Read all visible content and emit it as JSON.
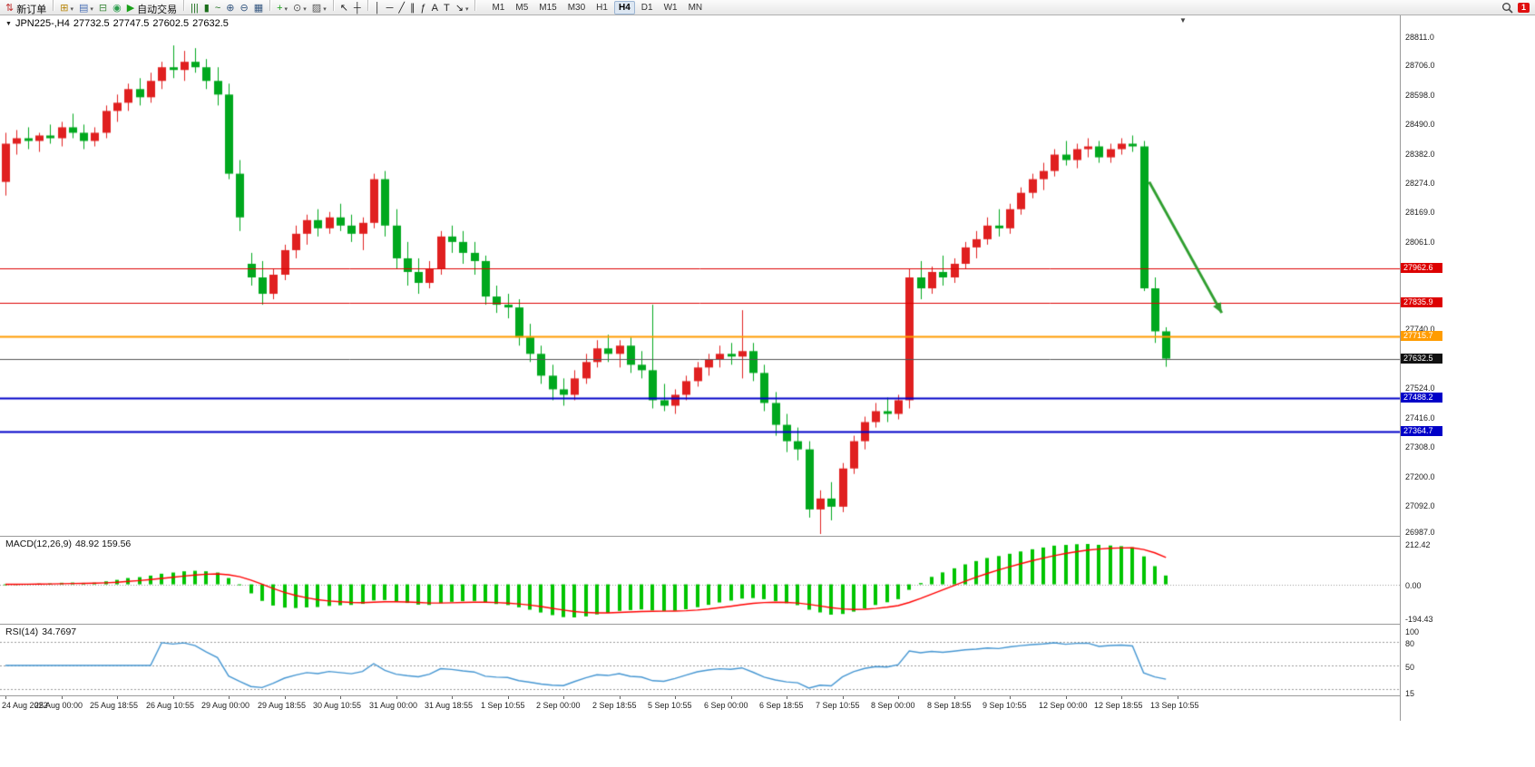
{
  "toolbar": {
    "items": [
      {
        "type": "button",
        "name": "new-order-button",
        "icon_name": "new-order-icon",
        "glyph": "⇅",
        "color": "#c03030",
        "label": "新订单"
      },
      {
        "type": "sep"
      },
      {
        "type": "icon",
        "name": "new-chart-icon",
        "glyph": "⊞",
        "color": "#b8860b",
        "dropdown": true
      },
      {
        "type": "icon",
        "name": "profiles-icon",
        "glyph": "▤",
        "color": "#4a6fb5",
        "dropdown": true
      },
      {
        "type": "icon",
        "name": "market-watch-icon",
        "glyph": "⊟",
        "color": "#3f8a3f"
      },
      {
        "type": "icon",
        "name": "mql5-community-icon",
        "glyph": "◉",
        "color": "#2e9e4f"
      },
      {
        "type": "button",
        "name": "autotrading-button",
        "icon_name": "autotrading-icon",
        "glyph": "▶",
        "color": "#18a018",
        "label": "自动交易"
      },
      {
        "type": "sep"
      },
      {
        "type": "icon",
        "name": "bar-chart-icon",
        "glyph": "|||",
        "color": "#1a6e1a"
      },
      {
        "type": "icon",
        "name": "candlestick-chart-icon",
        "glyph": "▮",
        "color": "#1a6e1a"
      },
      {
        "type": "icon",
        "name": "line-chart-icon",
        "glyph": "~",
        "color": "#1a6e1a"
      },
      {
        "type": "icon",
        "name": "zoom-in-icon",
        "glyph": "⊕",
        "color": "#33557f"
      },
      {
        "type": "icon",
        "name": "zoom-out-icon",
        "glyph": "⊖",
        "color": "#33557f"
      },
      {
        "type": "icon",
        "name": "tile-windows-icon",
        "glyph": "▦",
        "color": "#33557f"
      },
      {
        "type": "sep"
      },
      {
        "type": "icon",
        "name": "indicators-icon",
        "glyph": "+",
        "color": "#18a018",
        "dropdown": true
      },
      {
        "type": "icon",
        "name": "periods-icon",
        "glyph": "⊙",
        "color": "#555555",
        "dropdown": true
      },
      {
        "type": "icon",
        "name": "templates-icon",
        "glyph": "▨",
        "color": "#555555",
        "dropdown": true
      },
      {
        "type": "sep"
      },
      {
        "type": "icon",
        "name": "cursor-icon",
        "glyph": "↖",
        "color": "#222222"
      },
      {
        "type": "icon",
        "name": "crosshair-icon",
        "glyph": "┼",
        "color": "#222222"
      },
      {
        "type": "sep"
      },
      {
        "type": "icon",
        "name": "vertical-line-icon",
        "glyph": "│",
        "color": "#222222"
      },
      {
        "type": "icon",
        "name": "horizontal-line-icon",
        "glyph": "─",
        "color": "#222222"
      },
      {
        "type": "icon",
        "name": "trendline-icon",
        "glyph": "╱",
        "color": "#222222"
      },
      {
        "type": "icon",
        "name": "channel-icon",
        "glyph": "∥",
        "color": "#222222"
      },
      {
        "type": "icon",
        "name": "fibonacci-icon",
        "glyph": "ƒ",
        "color": "#222222"
      },
      {
        "type": "icon",
        "name": "text-icon",
        "glyph": "A",
        "color": "#222222"
      },
      {
        "type": "icon",
        "name": "label-icon",
        "glyph": "T",
        "color": "#222222"
      },
      {
        "type": "icon",
        "name": "arrows-icon",
        "glyph": "↘",
        "color": "#222222",
        "dropdown": true
      },
      {
        "type": "sep"
      }
    ],
    "timeframes": [
      "M1",
      "M5",
      "M15",
      "M30",
      "H1",
      "H4",
      "D1",
      "W1",
      "MN"
    ],
    "active_timeframe": "H4",
    "notification_badge": "1"
  },
  "chart": {
    "title": {
      "symbol_period": "JPN225-,H4",
      "open": "27732.5",
      "high": "27747.5",
      "low": "27602.5",
      "close": "27632.5"
    },
    "price_axis": {
      "max": 28890,
      "min": 26980,
      "ticks": [
        "28811.0",
        "28706.0",
        "28598.0",
        "28490.0",
        "28382.0",
        "28274.0",
        "28169.0",
        "28061.0",
        "27740.0",
        "27524.0",
        "27416.0",
        "27308.0",
        "27200.0",
        "27092.0",
        "26987.0"
      ]
    },
    "levels": [
      {
        "price": 27962.6,
        "label": "27962.6",
        "color": "#dd0000",
        "width": 1
      },
      {
        "price": 27835.9,
        "label": "27835.9",
        "color": "#dd0000",
        "width": 1
      },
      {
        "price": 27715.7,
        "label": "27715.7",
        "color": "#ff9c00",
        "width": 2
      },
      {
        "price": 27488.2,
        "label": "27488.2",
        "color": "#0000c8",
        "width": 2
      },
      {
        "price": 27364.7,
        "label": "27364.7",
        "color": "#0000c8",
        "width": 2
      }
    ],
    "current_price": {
      "value": 27632.5,
      "label": "27632.5",
      "line_color": "#555555",
      "tag_bg": "#111111"
    },
    "arrow": {
      "from_index": 102.5,
      "from_price": 28280,
      "to_index": 109,
      "to_price": 27800,
      "color": "#2f9e2f"
    }
  },
  "macd": {
    "name": "MACD(12,26,9)",
    "values": "48.92 159.56",
    "axis_ticks": [
      "212.42",
      "0.00",
      "-194.43"
    ],
    "hist_color": "#00c400",
    "signal_color": "#ff0000"
  },
  "rsi": {
    "name": "RSI(14)",
    "value": "34.7697",
    "axis_ticks": [
      "100",
      "80",
      "50",
      "15"
    ],
    "levels": [
      80,
      50,
      20
    ],
    "scale_max": 100,
    "scale_min": 15,
    "line_color": "#4596d2"
  },
  "time_axis": {
    "labels": [
      "24 Aug 2022",
      "25 Aug 00:00",
      "25 Aug 18:55",
      "26 Aug 10:55",
      "29 Aug 00:00",
      "29 Aug 18:55",
      "30 Aug 10:55",
      "31 Aug 00:00",
      "31 Aug 18:55",
      "1 Sep 10:55",
      "2 Sep 00:00",
      "2 Sep 18:55",
      "5 Sep 10:55",
      "6 Sep 00:00",
      "6 Sep 18:55",
      "7 Sep 10:55",
      "8 Sep 00:00",
      "8 Sep 18:55",
      "9 Sep 10:55",
      "12 Sep 00:00",
      "12 Sep 18:55",
      "13 Sep 10:55"
    ]
  },
  "chart_data": {
    "type": "candlestick",
    "symbol": "JPN225-",
    "timeframe": "H4",
    "up_color": "#e02020",
    "down_color": "#00a81e",
    "price_range": [
      26980,
      28890
    ],
    "indicators": [
      {
        "name": "MACD",
        "params": [
          12,
          26,
          9
        ],
        "current": [
          48.92,
          159.56
        ]
      },
      {
        "name": "RSI",
        "params": [
          14
        ],
        "current": 34.7697
      }
    ],
    "candles": [
      [
        28280,
        28460,
        28230,
        28420
      ],
      [
        28420,
        28470,
        28380,
        28440
      ],
      [
        28440,
        28480,
        28400,
        28430
      ],
      [
        28430,
        28460,
        28390,
        28450
      ],
      [
        28450,
        28490,
        28420,
        28440
      ],
      [
        28440,
        28500,
        28410,
        28480
      ],
      [
        28480,
        28530,
        28440,
        28460
      ],
      [
        28460,
        28490,
        28400,
        28430
      ],
      [
        28430,
        28480,
        28410,
        28460
      ],
      [
        28460,
        28560,
        28440,
        28540
      ],
      [
        28540,
        28600,
        28500,
        28570
      ],
      [
        28570,
        28640,
        28540,
        28620
      ],
      [
        28620,
        28660,
        28560,
        28590
      ],
      [
        28590,
        28680,
        28570,
        28650
      ],
      [
        28650,
        28720,
        28620,
        28700
      ],
      [
        28700,
        28780,
        28660,
        28690
      ],
      [
        28690,
        28760,
        28650,
        28720
      ],
      [
        28720,
        28770,
        28680,
        28700
      ],
      [
        28700,
        28730,
        28620,
        28650
      ],
      [
        28650,
        28700,
        28560,
        28600
      ],
      [
        28600,
        28640,
        28290,
        28310
      ],
      [
        28310,
        28360,
        28100,
        28150
      ],
      [
        27980,
        28020,
        27900,
        27930
      ],
      [
        27930,
        27990,
        27830,
        27870
      ],
      [
        27870,
        27960,
        27850,
        27940
      ],
      [
        27940,
        28050,
        27920,
        28030
      ],
      [
        28030,
        28120,
        28000,
        28090
      ],
      [
        28090,
        28160,
        28050,
        28140
      ],
      [
        28140,
        28180,
        28080,
        28110
      ],
      [
        28110,
        28170,
        28090,
        28150
      ],
      [
        28150,
        28200,
        28100,
        28120
      ],
      [
        28120,
        28160,
        28060,
        28090
      ],
      [
        28090,
        28150,
        28030,
        28130
      ],
      [
        28130,
        28310,
        28110,
        28290
      ],
      [
        28290,
        28320,
        28080,
        28120
      ],
      [
        28120,
        28180,
        27960,
        28000
      ],
      [
        28000,
        28060,
        27900,
        27950
      ],
      [
        27950,
        28000,
        27870,
        27910
      ],
      [
        27910,
        27990,
        27890,
        27960
      ],
      [
        27960,
        28100,
        27940,
        28080
      ],
      [
        28080,
        28120,
        28020,
        28060
      ],
      [
        28060,
        28100,
        27980,
        28020
      ],
      [
        28020,
        28060,
        27940,
        27990
      ],
      [
        27990,
        28010,
        27830,
        27860
      ],
      [
        27860,
        27900,
        27800,
        27830
      ],
      [
        27830,
        27870,
        27780,
        27820
      ],
      [
        27820,
        27850,
        27680,
        27710
      ],
      [
        27710,
        27760,
        27620,
        27650
      ],
      [
        27650,
        27680,
        27540,
        27570
      ],
      [
        27570,
        27610,
        27480,
        27520
      ],
      [
        27520,
        27560,
        27460,
        27500
      ],
      [
        27500,
        27590,
        27480,
        27560
      ],
      [
        27560,
        27650,
        27540,
        27620
      ],
      [
        27620,
        27700,
        27600,
        27670
      ],
      [
        27670,
        27720,
        27620,
        27650
      ],
      [
        27650,
        27700,
        27600,
        27680
      ],
      [
        27680,
        27710,
        27580,
        27610
      ],
      [
        27610,
        27660,
        27560,
        27590
      ],
      [
        27590,
        27830,
        27450,
        27480
      ],
      [
        27480,
        27540,
        27440,
        27460
      ],
      [
        27460,
        27520,
        27430,
        27500
      ],
      [
        27500,
        27570,
        27480,
        27550
      ],
      [
        27550,
        27620,
        27530,
        27600
      ],
      [
        27600,
        27650,
        27570,
        27630
      ],
      [
        27630,
        27680,
        27600,
        27650
      ],
      [
        27650,
        27690,
        27610,
        27640
      ],
      [
        27640,
        27810,
        27560,
        27660
      ],
      [
        27660,
        27690,
        27550,
        27580
      ],
      [
        27580,
        27610,
        27440,
        27470
      ],
      [
        27470,
        27510,
        27350,
        27390
      ],
      [
        27390,
        27430,
        27290,
        27330
      ],
      [
        27330,
        27380,
        27260,
        27300
      ],
      [
        27300,
        27330,
        27050,
        27080
      ],
      [
        27080,
        27150,
        26990,
        27120
      ],
      [
        27120,
        27180,
        27040,
        27090
      ],
      [
        27090,
        27250,
        27070,
        27230
      ],
      [
        27230,
        27350,
        27210,
        27330
      ],
      [
        27330,
        27420,
        27300,
        27400
      ],
      [
        27400,
        27470,
        27380,
        27440
      ],
      [
        27440,
        27490,
        27400,
        27430
      ],
      [
        27430,
        27500,
        27410,
        27480
      ],
      [
        27480,
        27960,
        27450,
        27930
      ],
      [
        27930,
        27990,
        27850,
        27890
      ],
      [
        27890,
        27970,
        27870,
        27950
      ],
      [
        27950,
        28010,
        27900,
        27930
      ],
      [
        27930,
        28000,
        27910,
        27980
      ],
      [
        27980,
        28060,
        27960,
        28040
      ],
      [
        28040,
        28100,
        28000,
        28070
      ],
      [
        28070,
        28150,
        28050,
        28120
      ],
      [
        28120,
        28180,
        28080,
        28110
      ],
      [
        28110,
        28200,
        28090,
        28180
      ],
      [
        28180,
        28260,
        28160,
        28240
      ],
      [
        28240,
        28310,
        28220,
        28290
      ],
      [
        28290,
        28350,
        28250,
        28320
      ],
      [
        28320,
        28400,
        28300,
        28380
      ],
      [
        28380,
        28430,
        28340,
        28360
      ],
      [
        28360,
        28420,
        28330,
        28400
      ],
      [
        28400,
        28440,
        28370,
        28410
      ],
      [
        28410,
        28430,
        28350,
        28370
      ],
      [
        28370,
        28420,
        28350,
        28400
      ],
      [
        28400,
        28440,
        28380,
        28420
      ],
      [
        28420,
        28450,
        28390,
        28410
      ],
      [
        28410,
        28430,
        27880,
        27890
      ],
      [
        27890,
        27930,
        27690,
        27732.5
      ],
      [
        27732.5,
        27747.5,
        27602.5,
        27632.5
      ]
    ]
  }
}
